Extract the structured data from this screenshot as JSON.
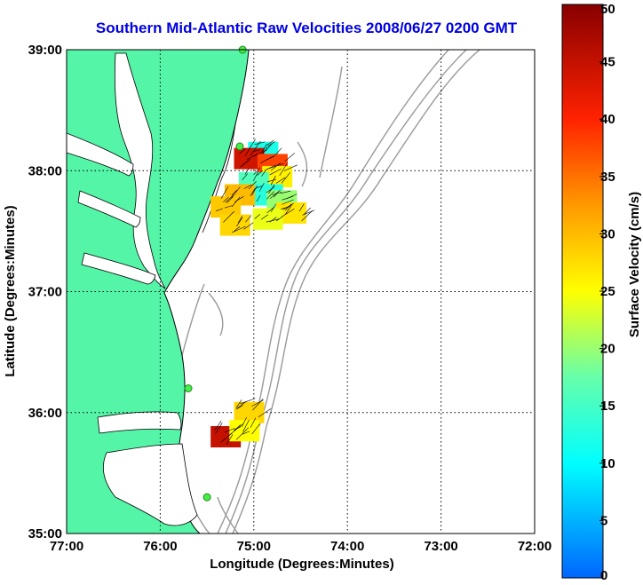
{
  "title": "Southern Mid-Atlantic Raw Velocities 2008/06/27 0200 GMT",
  "map": {
    "xlabel": "Longitude (Degrees:Minutes)",
    "ylabel": "Latitude (Degrees:Minutes)",
    "lon_range": [
      -77,
      -72
    ],
    "lat_range": [
      35,
      39
    ],
    "lon_ticks": [
      "77:00",
      "76:00",
      "75:00",
      "74:00",
      "73:00",
      "72:00"
    ],
    "lat_ticks": [
      "35:00",
      "36:00",
      "37:00",
      "38:00",
      "39:00"
    ],
    "grid": "dotted",
    "land_color": "#55f5a8",
    "bathymetry_color": "#999999",
    "vector_color": "#000000"
  },
  "colorbar": {
    "label": "Surface Velocity (cm/s)",
    "range": [
      0,
      50
    ],
    "ticks": [
      "0",
      "5",
      "10",
      "15",
      "20",
      "25",
      "30",
      "35",
      "40",
      "45",
      "50"
    ]
  },
  "stations": [
    {
      "lon": -75.12,
      "lat": 39.0
    },
    {
      "lon": -75.15,
      "lat": 38.2
    },
    {
      "lon": -75.7,
      "lat": 36.2
    },
    {
      "lon": -75.5,
      "lat": 35.3
    }
  ],
  "velocity_patches": [
    {
      "lon": -74.9,
      "lat": 38.15,
      "speed": 12
    },
    {
      "lon": -75.05,
      "lat": 38.1,
      "speed": 44
    },
    {
      "lon": -74.8,
      "lat": 38.05,
      "speed": 38
    },
    {
      "lon": -74.75,
      "lat": 37.95,
      "speed": 26
    },
    {
      "lon": -75.0,
      "lat": 37.9,
      "speed": 16
    },
    {
      "lon": -74.85,
      "lat": 37.8,
      "speed": 13
    },
    {
      "lon": -74.7,
      "lat": 37.75,
      "speed": 20
    },
    {
      "lon": -75.15,
      "lat": 37.8,
      "speed": 30
    },
    {
      "lon": -75.3,
      "lat": 37.7,
      "speed": 29
    },
    {
      "lon": -74.6,
      "lat": 37.65,
      "speed": 27
    },
    {
      "lon": -75.2,
      "lat": 37.55,
      "speed": 28
    },
    {
      "lon": -74.85,
      "lat": 37.6,
      "speed": 24
    },
    {
      "lon": -75.05,
      "lat": 36.0,
      "speed": 28
    },
    {
      "lon": -75.3,
      "lat": 35.8,
      "speed": 45
    },
    {
      "lon": -75.1,
      "lat": 35.85,
      "speed": 25
    }
  ]
}
